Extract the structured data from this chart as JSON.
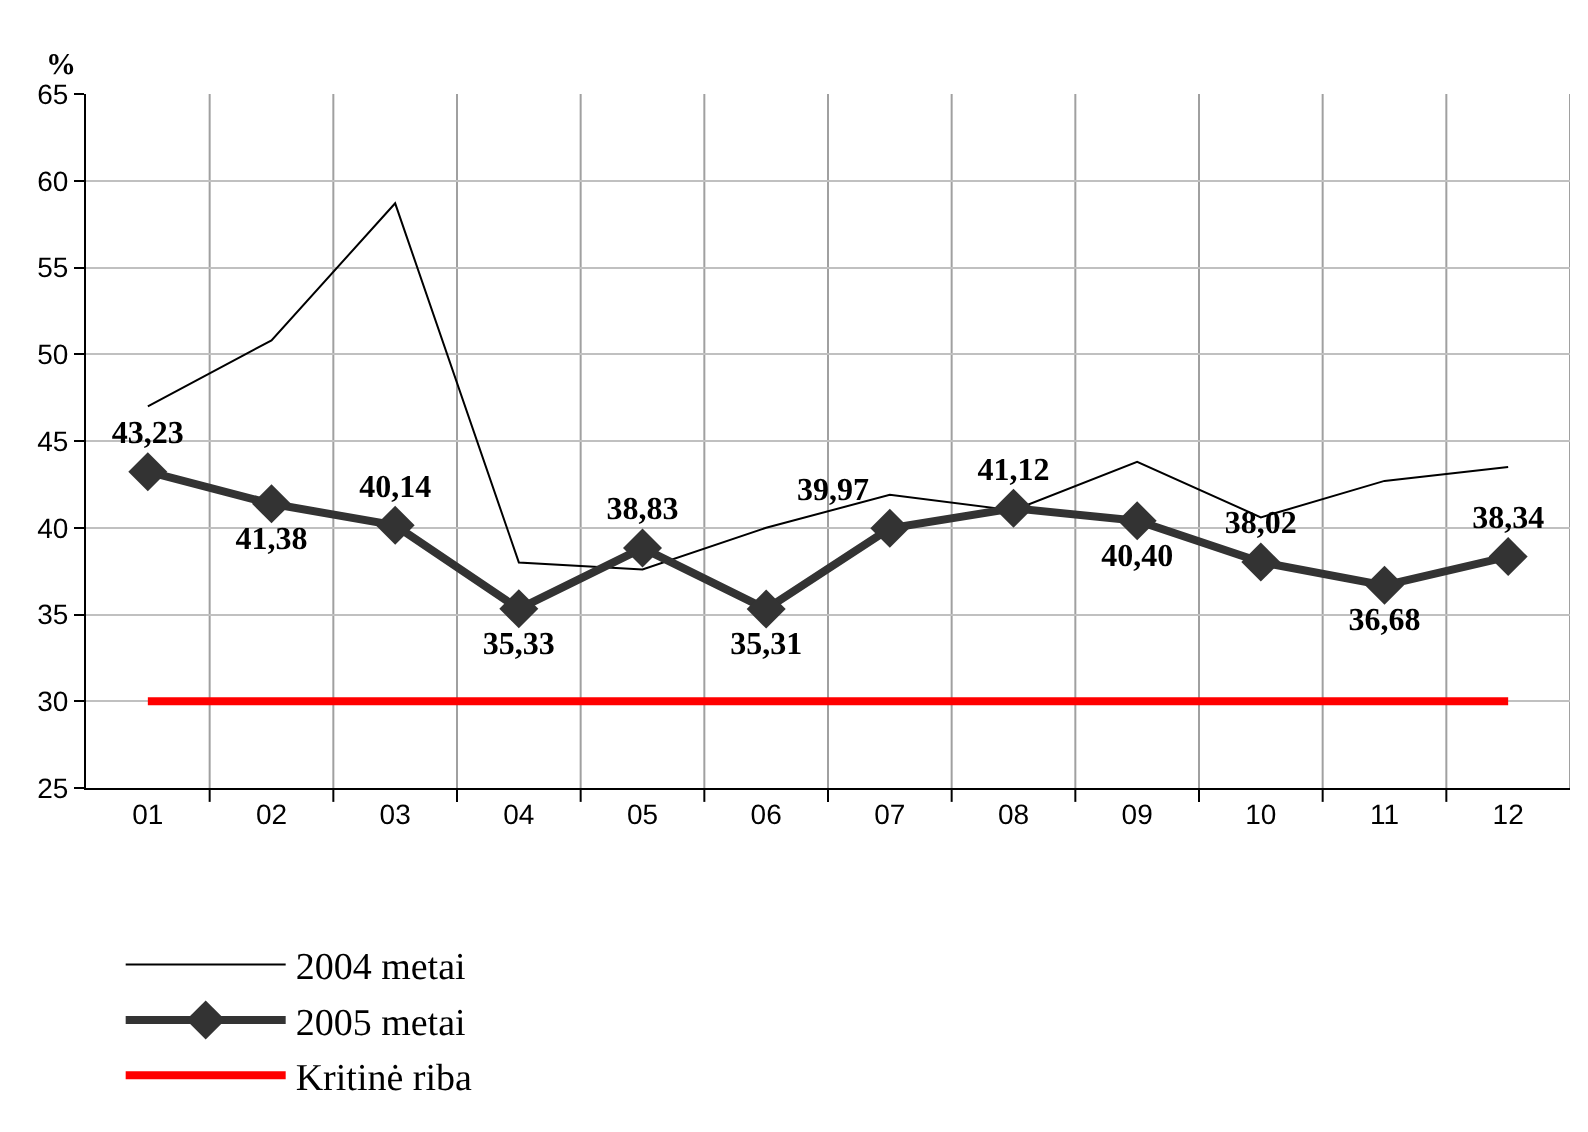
{
  "chart_data": {
    "type": "line",
    "ylabel": "%",
    "categories": [
      "01",
      "02",
      "03",
      "04",
      "05",
      "06",
      "07",
      "08",
      "09",
      "10",
      "11",
      "12"
    ],
    "series": [
      {
        "name": "2004 metai",
        "color": "#000000",
        "marker": "none",
        "values": [
          47.0,
          50.8,
          58.7,
          38.0,
          37.6,
          40.0,
          41.9,
          41.0,
          43.8,
          40.6,
          42.7,
          43.5
        ]
      },
      {
        "name": "2005 metai",
        "color": "#333333",
        "marker": "diamond",
        "values": [
          43.23,
          41.38,
          40.14,
          35.33,
          38.83,
          35.31,
          39.97,
          41.12,
          40.4,
          38.02,
          36.68,
          38.34
        ],
        "value_labels": [
          "43,23",
          "41,38",
          "40,14",
          "35,33",
          "38,83",
          "35,31",
          "39,97",
          "41,12",
          "40,40",
          "38,02",
          "36,68",
          "38,34"
        ]
      },
      {
        "name": "Kritinė riba",
        "color": "#ff0000",
        "marker": "none",
        "values": [
          30,
          30,
          30,
          30,
          30,
          30,
          30,
          30,
          30,
          30,
          30,
          30
        ]
      }
    ],
    "ylim": [
      25,
      65
    ],
    "yticks": [
      25,
      30,
      35,
      40,
      45,
      50,
      55,
      60,
      65
    ],
    "grid": true,
    "legend": "bottom",
    "line_style": "solid"
  }
}
